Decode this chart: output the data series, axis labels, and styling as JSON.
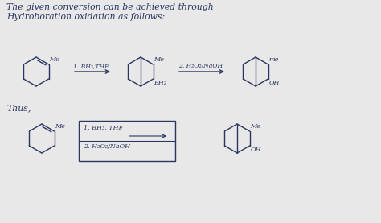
{
  "background_color": "#e8e8e8",
  "text_color": "#2a3560",
  "line_color": "#2a3560",
  "title_line1": "The given conversion can be achieved through",
  "title_line2": "Hydroboration oxidation as follows:",
  "thus_label": "Thus,",
  "font_size_title": 7.8,
  "font_size_label": 6.2,
  "font_size_sub": 5.8
}
